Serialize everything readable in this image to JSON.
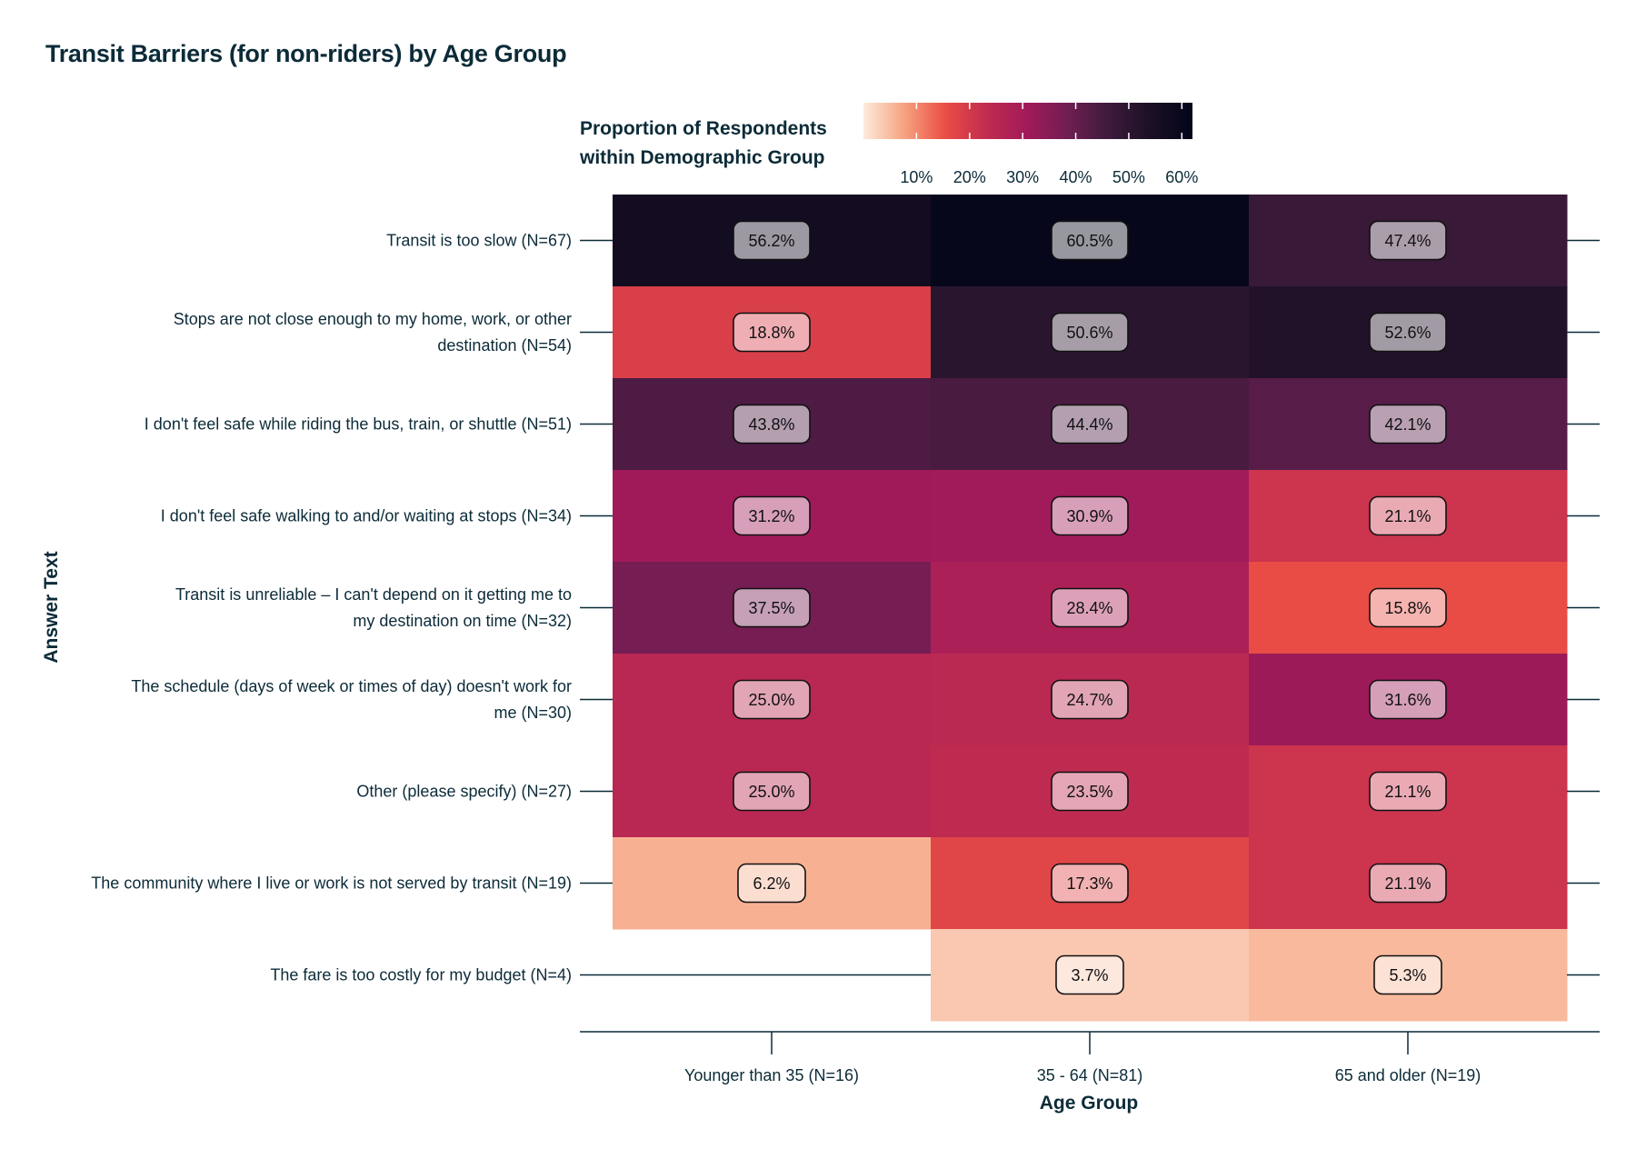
{
  "chart_data": {
    "type": "heatmap",
    "title": "Transit Barriers (for non-riders) by Age Group",
    "xlabel": "Age Group",
    "ylabel": "Answer Text",
    "x_categories": [
      "Younger than 35 (N=16)",
      "35 - 64 (N=81)",
      "65 and older (N=19)"
    ],
    "y_categories": [
      "Transit is too slow (N=67)",
      "Stops are not close enough to my home, work, or other destination (N=54)",
      "I don't feel safe while riding the bus, train, or shuttle (N=51)",
      "I don't feel safe walking to and/or waiting at stops (N=34)",
      "Transit is unreliable – I can't depend on it getting me to my destination on time (N=32)",
      "The schedule (days of week or times of day) doesn't work for me (N=30)",
      "Other (please specify) (N=27)",
      "The community where I live or work is not served by transit (N=19)",
      "The fare is too costly for my budget (N=4)"
    ],
    "y_label_lines": [
      [
        "Transit is too slow (N=67)"
      ],
      [
        "Stops are not close enough to my home, work, or other",
        "destination (N=54)"
      ],
      [
        "I don't feel safe while riding the bus, train, or shuttle (N=51)"
      ],
      [
        "I don't feel safe walking to and/or waiting at stops (N=34)"
      ],
      [
        "Transit is unreliable – I can't depend on it getting me to",
        "my destination on time (N=32)"
      ],
      [
        "The schedule (days of week or times of day) doesn't work for",
        "me (N=30)"
      ],
      [
        "Other (please specify) (N=27)"
      ],
      [
        "The community where I live or work is not served by transit (N=19)"
      ],
      [
        "The fare is too costly for my budget (N=4)"
      ]
    ],
    "values": [
      [
        56.2,
        60.5,
        47.4
      ],
      [
        18.8,
        50.6,
        52.6
      ],
      [
        43.8,
        44.4,
        42.1
      ],
      [
        31.2,
        30.9,
        21.1
      ],
      [
        37.5,
        28.4,
        15.8
      ],
      [
        25.0,
        24.7,
        31.6
      ],
      [
        25.0,
        23.5,
        21.1
      ],
      [
        6.2,
        17.3,
        21.1
      ],
      [
        null,
        3.7,
        5.3
      ]
    ],
    "value_labels": [
      [
        "56.2%",
        "60.5%",
        "47.4%"
      ],
      [
        "18.8%",
        "50.6%",
        "52.6%"
      ],
      [
        "43.8%",
        "44.4%",
        "42.1%"
      ],
      [
        "31.2%",
        "30.9%",
        "21.1%"
      ],
      [
        "37.5%",
        "28.4%",
        "15.8%"
      ],
      [
        "25.0%",
        "24.7%",
        "31.6%"
      ],
      [
        "25.0%",
        "23.5%",
        "21.1%"
      ],
      [
        "6.2%",
        "17.3%",
        "21.1%"
      ],
      [
        "",
        "3.7%",
        "5.3%"
      ]
    ],
    "legend": {
      "title_lines": [
        "Proportion of Respondents",
        "within Demographic Group"
      ],
      "range": [
        0,
        62
      ],
      "ticks": [
        10,
        20,
        30,
        40,
        50,
        60
      ],
      "tick_labels": [
        "10%",
        "20%",
        "30%",
        "40%",
        "50%",
        "60%"
      ],
      "placement": "top"
    },
    "colormap": [
      "#fdebdc",
      "#f6a27f",
      "#ea4d44",
      "#c02c50",
      "#a11a5a",
      "#6e1e52",
      "#3c1a3b",
      "#1a1024",
      "#03051a"
    ],
    "grid": false
  }
}
